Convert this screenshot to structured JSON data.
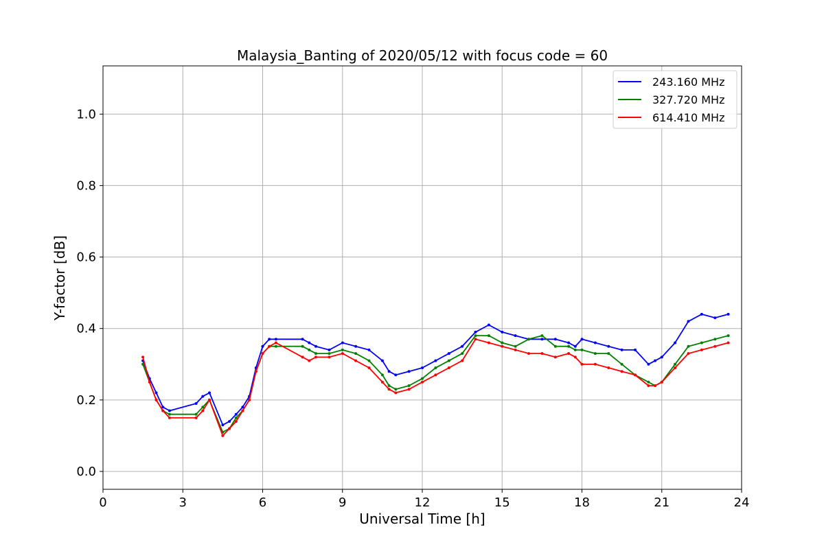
{
  "chart_data": {
    "type": "line",
    "title": "Malaysia_Banting of 2020/05/12 with focus code = 60",
    "xlabel": "Universal Time [h]",
    "ylabel": "Y-factor [dB]",
    "xlim": [
      0,
      24
    ],
    "ylim": [
      -0.05,
      1.135
    ],
    "xticks": [
      "0",
      "3",
      "6",
      "9",
      "12",
      "15",
      "18",
      "21",
      "24"
    ],
    "yticks": [
      "0.0",
      "0.2",
      "0.4",
      "0.6",
      "0.8",
      "1.0"
    ],
    "grid": true,
    "legend_position": "top-right",
    "series": [
      {
        "name": "243.160 MHz",
        "color": "#0000ff",
        "x": [
          1.5,
          1.75,
          2.0,
          2.25,
          2.5,
          3.5,
          3.75,
          4.0,
          4.5,
          4.75,
          5.0,
          5.25,
          5.5,
          5.75,
          6.0,
          6.25,
          6.5,
          7.5,
          7.75,
          8.0,
          8.5,
          9.0,
          9.5,
          10.0,
          10.5,
          10.75,
          11.0,
          11.5,
          12.0,
          12.5,
          13.0,
          13.5,
          14.0,
          14.5,
          15.0,
          15.5,
          16.0,
          16.5,
          17.0,
          17.5,
          17.75,
          18.0,
          18.5,
          19.0,
          19.5,
          20.0,
          20.5,
          20.75,
          21.0,
          21.5,
          22.0,
          22.5,
          23.0,
          23.5
        ],
        "values": [
          0.31,
          0.26,
          0.22,
          0.18,
          0.17,
          0.19,
          0.21,
          0.22,
          0.13,
          0.14,
          0.16,
          0.18,
          0.21,
          0.29,
          0.35,
          0.37,
          0.37,
          0.37,
          0.36,
          0.35,
          0.34,
          0.36,
          0.35,
          0.34,
          0.31,
          0.28,
          0.27,
          0.28,
          0.29,
          0.31,
          0.33,
          0.35,
          0.39,
          0.41,
          0.39,
          0.38,
          0.37,
          0.37,
          0.37,
          0.36,
          0.35,
          0.37,
          0.36,
          0.35,
          0.34,
          0.34,
          0.3,
          0.31,
          0.32,
          0.36,
          0.42,
          0.44,
          0.43,
          0.44
        ]
      },
      {
        "name": "327.720 MHz",
        "color": "#008000",
        "x": [
          1.5,
          1.75,
          2.0,
          2.25,
          2.5,
          3.5,
          3.75,
          4.0,
          4.5,
          4.75,
          5.0,
          5.25,
          5.5,
          5.75,
          6.0,
          6.25,
          6.5,
          7.5,
          7.75,
          8.0,
          8.5,
          9.0,
          9.5,
          10.0,
          10.5,
          10.75,
          11.0,
          11.5,
          12.0,
          12.5,
          13.0,
          13.5,
          14.0,
          14.5,
          15.0,
          15.5,
          16.0,
          16.5,
          17.0,
          17.5,
          17.75,
          18.0,
          18.5,
          19.0,
          19.5,
          20.0,
          20.5,
          20.75,
          21.0,
          21.5,
          22.0,
          22.5,
          23.0,
          23.5
        ],
        "values": [
          0.3,
          0.25,
          0.2,
          0.17,
          0.16,
          0.16,
          0.18,
          0.2,
          0.11,
          0.12,
          0.15,
          0.17,
          0.2,
          0.28,
          0.33,
          0.35,
          0.35,
          0.35,
          0.34,
          0.33,
          0.33,
          0.34,
          0.33,
          0.31,
          0.27,
          0.24,
          0.23,
          0.24,
          0.26,
          0.29,
          0.31,
          0.33,
          0.38,
          0.38,
          0.36,
          0.35,
          0.37,
          0.38,
          0.35,
          0.35,
          0.34,
          0.34,
          0.33,
          0.33,
          0.3,
          0.27,
          0.25,
          0.24,
          0.25,
          0.3,
          0.35,
          0.36,
          0.37,
          0.38
        ]
      },
      {
        "name": "614.410 MHz",
        "color": "#ff0000",
        "x": [
          1.5,
          1.75,
          2.0,
          2.25,
          2.5,
          3.5,
          3.75,
          4.0,
          4.5,
          4.75,
          5.0,
          5.25,
          5.5,
          5.75,
          6.0,
          6.25,
          6.5,
          7.5,
          7.75,
          8.0,
          8.5,
          9.0,
          9.5,
          10.0,
          10.5,
          10.75,
          11.0,
          11.5,
          12.0,
          12.5,
          13.0,
          13.5,
          14.0,
          14.5,
          15.0,
          15.5,
          16.0,
          16.5,
          17.0,
          17.5,
          17.75,
          18.0,
          18.5,
          19.0,
          19.5,
          20.0,
          20.5,
          20.75,
          21.0,
          21.5,
          22.0,
          22.5,
          23.0,
          23.5
        ],
        "values": [
          0.32,
          0.25,
          0.2,
          0.17,
          0.15,
          0.15,
          0.17,
          0.2,
          0.1,
          0.12,
          0.14,
          0.17,
          0.2,
          0.28,
          0.33,
          0.35,
          0.36,
          0.32,
          0.31,
          0.32,
          0.32,
          0.33,
          0.31,
          0.29,
          0.25,
          0.23,
          0.22,
          0.23,
          0.25,
          0.27,
          0.29,
          0.31,
          0.37,
          0.36,
          0.35,
          0.34,
          0.33,
          0.33,
          0.32,
          0.33,
          0.32,
          0.3,
          0.3,
          0.29,
          0.28,
          0.27,
          0.24,
          0.24,
          0.25,
          0.29,
          0.33,
          0.34,
          0.35,
          0.36
        ]
      }
    ]
  }
}
